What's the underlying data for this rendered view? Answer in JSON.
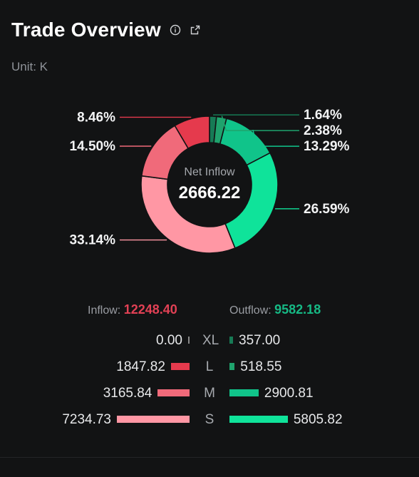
{
  "header": {
    "title": "Trade Overview",
    "info_icon": "info-icon",
    "share_icon": "share-icon"
  },
  "unit_label": "Unit: K",
  "center": {
    "label": "Net Inflow",
    "value": "2666.22"
  },
  "summary": {
    "inflow_label": "Inflow:",
    "inflow_value": "12248.40",
    "outflow_label": "Outflow:",
    "outflow_value": "9582.18"
  },
  "colors": {
    "xl_out": "#177a55",
    "l_out": "#1fa36d",
    "m_out": "#10c48a",
    "s_out": "#0fe39a",
    "l_in": "#e53a4d",
    "m_in": "#f06a7a",
    "s_in": "#ff97a4",
    "background": "#121314"
  },
  "chart_data": {
    "type": "pie",
    "title": "",
    "slices": [
      {
        "category": "XL",
        "flow": "outflow",
        "value": 1.64,
        "label": "1.64%"
      },
      {
        "category": "L",
        "flow": "outflow",
        "value": 2.38,
        "label": "2.38%"
      },
      {
        "category": "M",
        "flow": "outflow",
        "value": 13.29,
        "label": "13.29%"
      },
      {
        "category": "S",
        "flow": "outflow",
        "value": 26.59,
        "label": "26.59%"
      },
      {
        "category": "S",
        "flow": "inflow",
        "value": 33.14,
        "label": "33.14%"
      },
      {
        "category": "M",
        "flow": "inflow",
        "value": 14.5,
        "label": "14.50%"
      },
      {
        "category": "L",
        "flow": "inflow",
        "value": 8.46,
        "label": "8.46%"
      },
      {
        "category": "XL",
        "flow": "inflow",
        "value": 0.0,
        "label": ""
      }
    ],
    "rows": [
      {
        "category": "XL",
        "inflow": "0.00",
        "outflow": "357.00"
      },
      {
        "category": "L",
        "inflow": "1847.82",
        "outflow": "518.55"
      },
      {
        "category": "M",
        "inflow": "3165.84",
        "outflow": "2900.81"
      },
      {
        "category": "S",
        "inflow": "7234.73",
        "outflow": "5805.82"
      }
    ]
  }
}
